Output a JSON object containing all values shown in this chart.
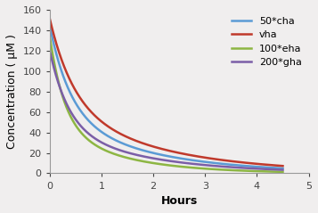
{
  "title": "",
  "xlabel": "Hours",
  "ylabel": "Concentration ( μM )",
  "xlim": [
    0,
    5
  ],
  "ylim": [
    0,
    160
  ],
  "yticks": [
    0,
    20,
    40,
    60,
    80,
    100,
    120,
    140,
    160
  ],
  "xticks": [
    0,
    1,
    2,
    3,
    4,
    5
  ],
  "series": [
    {
      "label": "50*cha",
      "color": "#5B9BD5",
      "y0": 145.0,
      "k1": 2.5,
      "a1": 0.6,
      "k2": 0.55,
      "a2": 0.4
    },
    {
      "label": "vha",
      "color": "#C0392B",
      "y0": 152.0,
      "k1": 2.2,
      "a1": 0.55,
      "k2": 0.5,
      "a2": 0.45
    },
    {
      "label": "100*eha",
      "color": "#8DB643",
      "y0": 135.0,
      "k1": 3.5,
      "a1": 0.65,
      "k2": 0.78,
      "a2": 0.35
    },
    {
      "label": "200*gha",
      "color": "#7B5EA7",
      "y0": 121.0,
      "k1": 2.8,
      "a1": 0.62,
      "k2": 0.58,
      "a2": 0.38
    }
  ],
  "legend_fontsize": 8,
  "axis_label_fontsize": 9,
  "tick_fontsize": 8,
  "linewidth": 1.8,
  "background_color": "#f0eeee"
}
